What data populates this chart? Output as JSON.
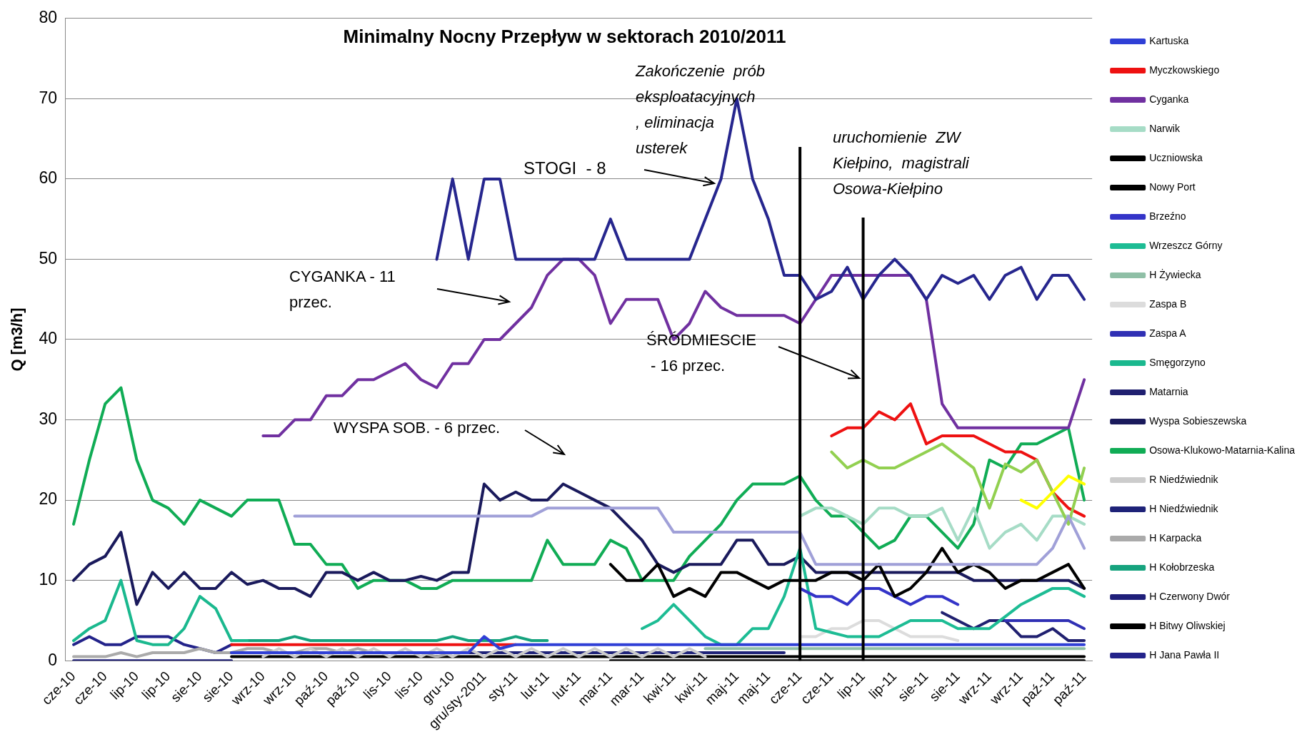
{
  "chart_data": {
    "type": "line",
    "title": "Minimalny Nocny Przepływ w sektorach 2010/2011",
    "ylabel": "Q [m3/h]",
    "categories": [
      "cze-10",
      null,
      "cze-10",
      null,
      "lip-10",
      null,
      "lip-10",
      null,
      "sie-10",
      null,
      "sie-10",
      null,
      "wrz-10",
      null,
      "wrz-10",
      null,
      "paź-10",
      null,
      "paź-10",
      null,
      "lis-10",
      null,
      "lis-10",
      null,
      "gru-10",
      null,
      "gru/sty-2011",
      null,
      "sty-11",
      null,
      "lut-11",
      null,
      "lut-11",
      null,
      "mar-11",
      null,
      "mar-11",
      null,
      "kwi-11",
      null,
      "kwi-11",
      null,
      "maj-11",
      null,
      "maj-11",
      null,
      "cze-11",
      null,
      "cze-11",
      null,
      "lip-11",
      null,
      "lip-11",
      null,
      "sie-11",
      null,
      "sie-11",
      null,
      "wrz-11",
      null,
      "wrz-11",
      null,
      "paź-11",
      null,
      "paź-11"
    ],
    "ylim": [
      0,
      80
    ],
    "yticks": [
      0,
      10,
      20,
      30,
      40,
      50,
      60,
      70,
      80
    ],
    "grid": "y",
    "legend": "right",
    "marker": "none",
    "line_style": "solid",
    "series": [
      {
        "name": "H Jana Pawła II",
        "color": "#23238a",
        "values": [
          2,
          3,
          2,
          2,
          3,
          3,
          3,
          2,
          1.5,
          1,
          2,
          null,
          null,
          null,
          null,
          null,
          null,
          null,
          null,
          null,
          null,
          null,
          null,
          null,
          null,
          null,
          null,
          null,
          null,
          null,
          null,
          null,
          null,
          null,
          null,
          null,
          null,
          null,
          null,
          null,
          null,
          null,
          null,
          null,
          null,
          null,
          null,
          null,
          null,
          null,
          null,
          null,
          null,
          null,
          null,
          null,
          null,
          null,
          null,
          null,
          null,
          null,
          null,
          null,
          null
        ]
      },
      {
        "name": "H Bitwy Oliwskiej",
        "color": "#000000",
        "values": [
          null,
          null,
          null,
          null,
          null,
          null,
          null,
          null,
          null,
          null,
          0.5,
          0.5,
          0.5,
          0.5,
          0.5,
          0.5,
          0.5,
          0.5,
          0.5,
          0.5,
          0.5,
          0.5,
          0.5,
          0.5,
          0.5,
          0.5,
          0.5,
          0.5,
          0.5,
          0.5,
          0.5,
          0.5,
          0.5,
          0.5,
          0.5,
          0.5,
          0.5,
          0.5,
          0.5,
          0.5,
          0.5,
          0.5,
          0.5,
          0.5,
          0.5,
          0.5,
          0.5,
          0.5,
          0.5,
          0.5,
          0.5,
          0.5,
          0.5,
          0.5,
          0.5,
          0.5,
          0.5,
          0.5,
          0.5,
          0.5,
          0.5,
          0.5,
          0.5,
          0.5,
          0.5
        ]
      },
      {
        "name": "H Czerwony Dwór",
        "color": "#1f1f7a",
        "values": [
          0,
          0,
          0,
          0,
          0,
          0,
          0,
          0,
          0,
          0,
          0,
          null,
          null,
          null,
          null,
          null,
          null,
          null,
          null,
          null,
          null,
          null,
          null,
          null,
          null,
          null,
          null,
          null,
          null,
          null,
          null,
          null,
          null,
          null,
          null,
          null,
          null,
          null,
          null,
          null,
          null,
          null,
          null,
          null,
          null,
          null,
          null,
          null,
          null,
          null,
          null,
          null,
          null,
          null,
          null,
          null,
          null,
          null,
          null,
          null,
          null,
          null,
          null,
          null,
          null
        ]
      },
      {
        "name": "H Kołobrzeska",
        "color": "#16a37e",
        "values": [
          null,
          null,
          null,
          null,
          null,
          null,
          null,
          null,
          null,
          null,
          2.5,
          2.5,
          2.5,
          2.5,
          3,
          2.5,
          2.5,
          2.5,
          2.5,
          2.5,
          2.5,
          2.5,
          2.5,
          2.5,
          3,
          2.5,
          2.5,
          2.5,
          3,
          2.5,
          2.5,
          null,
          null,
          null,
          null,
          null,
          null,
          null,
          null,
          null,
          null,
          null,
          null,
          null,
          null,
          null,
          null,
          null,
          null,
          null,
          null,
          null,
          null,
          null,
          null,
          null,
          null,
          null,
          null,
          null,
          null,
          null,
          null,
          null,
          null
        ]
      },
      {
        "name": "H Karpacka",
        "color": "#aaaaaa",
        "values": [
          0.5,
          0.5,
          0.5,
          1,
          0.5,
          1,
          1,
          1,
          1.5,
          1,
          1,
          1.5,
          1.5,
          1,
          1,
          1.5,
          1.5,
          1,
          1.5,
          1,
          1,
          1,
          1,
          0.5,
          1,
          1,
          1,
          1,
          1,
          1,
          1,
          null,
          null,
          null,
          null,
          null,
          null,
          null,
          null,
          null,
          null,
          null,
          null,
          null,
          null,
          null,
          null,
          null,
          null,
          null,
          null,
          null,
          null,
          null,
          null,
          null,
          null,
          null,
          null,
          null,
          null,
          null,
          null,
          null,
          null
        ]
      },
      {
        "name": "H Niedźwiednik",
        "color": "#1e2278",
        "values": [
          null,
          null,
          null,
          null,
          null,
          null,
          null,
          null,
          null,
          null,
          1,
          1,
          1,
          1,
          1,
          1,
          1,
          1,
          1,
          1,
          1,
          1,
          1,
          1,
          1,
          1,
          1,
          1,
          1,
          1,
          1,
          1,
          1,
          1,
          1,
          1,
          1,
          1,
          1,
          1,
          1,
          1,
          1,
          1,
          1,
          1,
          null,
          null,
          null,
          null,
          null,
          null,
          null,
          null,
          null,
          null,
          null,
          null,
          null,
          null,
          null,
          null,
          null,
          null,
          null
        ]
      },
      {
        "name": "R Niedźwiednik",
        "color": "#cccccc",
        "values": [
          null,
          null,
          null,
          null,
          null,
          null,
          null,
          null,
          null,
          null,
          null,
          null,
          0.5,
          1.5,
          0.5,
          1.5,
          0.5,
          1.5,
          0.5,
          1.5,
          0.5,
          1.5,
          0.5,
          1.5,
          0.5,
          1.5,
          0.5,
          1.5,
          0.5,
          1.5,
          0.5,
          1.5,
          0.5,
          1.5,
          0.5,
          1.5,
          0.5,
          1.5,
          0.5,
          1.5,
          0.5,
          null,
          null,
          null,
          null,
          null,
          null,
          null,
          null,
          null,
          null,
          null,
          null,
          null,
          null,
          null,
          null,
          null,
          null,
          null,
          null,
          null,
          null,
          null,
          null
        ]
      },
      {
        "name": "Osowa-Klukowo-Matarnia-Kalina",
        "color": "#10ac55",
        "values": [
          17,
          25,
          32,
          34,
          25,
          20,
          19,
          17,
          20,
          19,
          18,
          20,
          20,
          20,
          14.5,
          14.5,
          12,
          12,
          9,
          10,
          10,
          10,
          9,
          9,
          10,
          10,
          10,
          10,
          10,
          10,
          15,
          12,
          12,
          12,
          15,
          14,
          10,
          10,
          10,
          13,
          15,
          17,
          20,
          22,
          22,
          22,
          23,
          20,
          18,
          18,
          16,
          14,
          15,
          18,
          18,
          16,
          14,
          17,
          25,
          24,
          27,
          27,
          28,
          29,
          20
        ]
      },
      {
        "name": "Wyspa Sobieszewska",
        "color": "#1a1a5c",
        "values": [
          10,
          12,
          13,
          16,
          7,
          11,
          9,
          11,
          9,
          9,
          11,
          9.5,
          10,
          9,
          9,
          8,
          11,
          11,
          10,
          11,
          10,
          10,
          10.5,
          10,
          11,
          11,
          22,
          20,
          21,
          20,
          20,
          22,
          21,
          20,
          19,
          17,
          15,
          12,
          11,
          12,
          12,
          12,
          15,
          15,
          12,
          12,
          13,
          11,
          11,
          11,
          11,
          11,
          11,
          11,
          11,
          11,
          11,
          10,
          10,
          10,
          10,
          10,
          10,
          10,
          9
        ]
      },
      {
        "name": "Matarnia",
        "color": "#202070",
        "values": [
          null,
          null,
          null,
          null,
          null,
          null,
          null,
          null,
          null,
          null,
          null,
          null,
          null,
          null,
          null,
          null,
          null,
          null,
          null,
          null,
          null,
          null,
          null,
          null,
          null,
          null,
          null,
          null,
          null,
          null,
          null,
          null,
          null,
          null,
          null,
          null,
          null,
          null,
          null,
          null,
          null,
          null,
          null,
          null,
          null,
          null,
          null,
          null,
          null,
          null,
          null,
          null,
          null,
          null,
          null,
          6,
          5,
          4,
          5,
          5,
          3,
          3,
          4,
          2.5,
          2.5
        ]
      },
      {
        "name": "Smęgorzyno",
        "color": "#1ab88e",
        "values": [
          2.5,
          4,
          5,
          10,
          2.5,
          2,
          2,
          4,
          8,
          6.5,
          2.5,
          2.5,
          null,
          null,
          null,
          null,
          null,
          null,
          null,
          null,
          null,
          null,
          null,
          null,
          null,
          null,
          null,
          null,
          null,
          null,
          null,
          null,
          null,
          null,
          null,
          null,
          null,
          null,
          null,
          null,
          null,
          null,
          null,
          null,
          null,
          null,
          null,
          null,
          null,
          null,
          null,
          null,
          null,
          null,
          null,
          null,
          null,
          null,
          null,
          null,
          null,
          null,
          null,
          null,
          null
        ]
      },
      {
        "name": "Zaspa A",
        "color": "#3030b4",
        "values": [
          null,
          null,
          null,
          null,
          null,
          null,
          null,
          null,
          null,
          null,
          null,
          null,
          null,
          null,
          null,
          null,
          null,
          null,
          null,
          null,
          null,
          null,
          null,
          null,
          null,
          null,
          null,
          null,
          null,
          null,
          null,
          null,
          null,
          null,
          null,
          null,
          null,
          null,
          null,
          null,
          null,
          null,
          null,
          null,
          null,
          null,
          null,
          null,
          null,
          null,
          null,
          null,
          null,
          null,
          null,
          null,
          null,
          null,
          null,
          5,
          5,
          5,
          5,
          5,
          4
        ]
      },
      {
        "name": "Zaspa B",
        "color": "#dcdcdc",
        "values": [
          null,
          null,
          null,
          null,
          null,
          null,
          null,
          null,
          null,
          null,
          null,
          null,
          null,
          null,
          null,
          null,
          null,
          null,
          null,
          null,
          null,
          null,
          null,
          null,
          null,
          null,
          null,
          null,
          null,
          null,
          null,
          null,
          null,
          null,
          null,
          null,
          null,
          null,
          null,
          null,
          null,
          null,
          null,
          null,
          null,
          null,
          3,
          3,
          4,
          4,
          5,
          5,
          4,
          3,
          3,
          3,
          2.5,
          null,
          null,
          null,
          null,
          null,
          null,
          null,
          null
        ]
      },
      {
        "name": "H Żywiecka",
        "color": "#8fbfa6",
        "values": [
          null,
          null,
          null,
          null,
          null,
          null,
          null,
          null,
          null,
          null,
          null,
          null,
          null,
          null,
          null,
          null,
          null,
          null,
          null,
          null,
          null,
          null,
          null,
          null,
          null,
          null,
          null,
          null,
          null,
          null,
          null,
          null,
          null,
          null,
          null,
          null,
          null,
          null,
          null,
          null,
          1.5,
          1.5,
          1.5,
          1.5,
          1.5,
          1.5,
          1.5,
          1.5,
          1.5,
          1.5,
          1.5,
          1.5,
          1.5,
          1.5,
          1.5,
          1.5,
          1.5,
          1.5,
          1.5,
          1.5,
          1.5,
          1.5,
          1.5,
          1.5,
          1.5
        ]
      },
      {
        "name": "Wrzeszcz Górny",
        "color": "#1dbc94",
        "values": [
          null,
          null,
          null,
          null,
          null,
          null,
          null,
          null,
          null,
          null,
          null,
          null,
          null,
          null,
          null,
          null,
          null,
          null,
          null,
          null,
          null,
          null,
          null,
          null,
          null,
          null,
          null,
          null,
          null,
          null,
          null,
          null,
          null,
          null,
          null,
          null,
          4,
          5,
          7,
          5,
          3,
          2,
          2,
          4,
          4,
          8,
          14,
          4,
          3.5,
          3,
          3,
          3,
          4,
          5,
          5,
          5,
          4,
          4,
          4,
          5.5,
          7,
          8,
          9,
          9,
          8
        ]
      },
      {
        "name": "Brzeźno",
        "color": "#3434c8",
        "values": [
          null,
          null,
          null,
          null,
          null,
          null,
          null,
          null,
          null,
          null,
          null,
          null,
          null,
          null,
          null,
          null,
          null,
          null,
          null,
          null,
          null,
          null,
          null,
          null,
          null,
          null,
          null,
          null,
          null,
          null,
          null,
          null,
          null,
          null,
          null,
          null,
          null,
          null,
          null,
          null,
          null,
          null,
          null,
          null,
          null,
          null,
          9,
          8,
          8,
          7,
          9,
          9,
          8,
          7,
          8,
          8,
          7,
          null,
          null,
          null,
          null,
          null,
          null,
          null,
          null
        ]
      },
      {
        "name": "Nowy Port",
        "color": "#000000",
        "values": [
          null,
          null,
          null,
          null,
          null,
          null,
          null,
          null,
          null,
          null,
          null,
          null,
          null,
          null,
          null,
          null,
          null,
          null,
          null,
          null,
          null,
          null,
          null,
          null,
          null,
          null,
          null,
          null,
          null,
          null,
          null,
          null,
          null,
          null,
          12,
          10,
          10,
          12,
          8,
          9,
          8,
          11,
          11,
          10,
          9,
          10,
          10,
          10,
          11,
          11,
          10,
          12,
          8,
          9,
          11,
          14,
          11,
          12,
          11,
          9,
          10,
          10,
          11,
          12,
          9
        ]
      },
      {
        "name": "Uczniowska",
        "color": "#000000",
        "values": [
          null,
          null,
          null,
          null,
          null,
          null,
          null,
          null,
          null,
          null,
          null,
          null,
          null,
          null,
          null,
          null,
          null,
          null,
          null,
          null,
          null,
          null,
          null,
          null,
          null,
          null,
          null,
          null,
          null,
          null,
          null,
          null,
          null,
          null,
          0,
          0,
          0,
          0,
          0,
          0,
          0,
          0,
          0,
          0,
          0,
          0,
          0,
          0,
          0,
          0,
          0,
          0,
          0,
          0,
          0,
          0,
          0,
          0,
          0,
          0,
          0,
          0,
          0,
          0,
          0
        ]
      },
      {
        "name": "Narwik",
        "color": "#a6dcc6",
        "values": [
          null,
          null,
          null,
          null,
          null,
          null,
          null,
          null,
          null,
          null,
          null,
          null,
          null,
          null,
          null,
          null,
          null,
          null,
          null,
          null,
          null,
          null,
          null,
          null,
          null,
          null,
          null,
          null,
          null,
          null,
          null,
          null,
          null,
          null,
          null,
          null,
          null,
          null,
          null,
          null,
          null,
          null,
          null,
          null,
          null,
          null,
          18,
          19,
          19,
          18,
          17,
          19,
          19,
          18,
          18,
          19,
          15,
          19,
          14,
          16,
          17,
          15,
          18,
          18,
          17
        ]
      },
      {
        "name": "Cyganka",
        "color": "#7030a0",
        "values": [
          null,
          null,
          null,
          null,
          null,
          null,
          null,
          null,
          null,
          null,
          null,
          null,
          28,
          28,
          30,
          30,
          33,
          33,
          35,
          35,
          36,
          37,
          35,
          34,
          37,
          37,
          40,
          40,
          42,
          44,
          48,
          50,
          50,
          48,
          42,
          45,
          45,
          45,
          40,
          42,
          46,
          44,
          43,
          43,
          43,
          43,
          42,
          45,
          48,
          48,
          48,
          48,
          48,
          48,
          45,
          32,
          29,
          29,
          29,
          29,
          29,
          29,
          29,
          29,
          35
        ]
      },
      {
        "name": "Myczkowskiego",
        "color": "#ee1111",
        "values": [
          null,
          null,
          null,
          null,
          null,
          null,
          null,
          null,
          null,
          null,
          2,
          2,
          2,
          2,
          2,
          2,
          2,
          2,
          2,
          2,
          2,
          2,
          2,
          2,
          2,
          2,
          2,
          2,
          2,
          null,
          null,
          null,
          null,
          null,
          null,
          null,
          null,
          null,
          null,
          null,
          null,
          null,
          null,
          null,
          null,
          null,
          null,
          null,
          28,
          29,
          29,
          31,
          30,
          32,
          27,
          28,
          28,
          28,
          27,
          26,
          26,
          25,
          21,
          19,
          18
        ]
      },
      {
        "name": "Kartuska",
        "color": "#2f3fd6",
        "values": [
          null,
          null,
          null,
          null,
          null,
          null,
          null,
          null,
          null,
          null,
          1,
          1,
          1,
          1,
          1,
          1,
          1,
          1,
          1,
          1,
          1,
          1,
          1,
          1,
          1,
          1,
          3,
          1.5,
          2,
          2,
          2,
          2,
          2,
          2,
          2,
          2,
          2,
          2,
          2,
          2,
          2,
          2,
          2,
          2,
          2,
          2,
          2,
          2,
          2,
          2,
          2,
          2,
          2,
          2,
          2,
          2,
          2,
          2,
          2,
          2,
          2,
          2,
          2,
          2,
          2
        ]
      },
      {
        "color": "#26268e",
        "values": [
          null,
          null,
          null,
          null,
          null,
          null,
          null,
          null,
          null,
          null,
          null,
          null,
          null,
          null,
          null,
          null,
          null,
          null,
          null,
          null,
          null,
          null,
          null,
          50,
          60,
          50,
          60,
          60,
          50,
          50,
          50,
          50,
          50,
          50,
          55,
          50,
          50,
          50,
          50,
          50,
          55,
          60,
          70,
          60,
          55,
          48,
          48,
          45,
          46,
          49,
          45,
          48,
          50,
          48,
          45,
          48,
          47,
          48,
          45,
          48,
          49,
          45,
          48,
          48,
          45
        ]
      },
      {
        "color": "#92d050",
        "values": [
          null,
          null,
          null,
          null,
          null,
          null,
          null,
          null,
          null,
          null,
          null,
          null,
          null,
          null,
          null,
          null,
          null,
          null,
          null,
          null,
          null,
          null,
          null,
          null,
          null,
          null,
          null,
          null,
          null,
          null,
          null,
          null,
          null,
          null,
          null,
          null,
          null,
          null,
          null,
          null,
          null,
          null,
          null,
          null,
          null,
          null,
          null,
          null,
          26,
          24,
          25,
          24,
          24,
          25,
          26,
          27,
          25.5,
          24,
          19,
          24.5,
          23.5,
          25,
          21,
          17,
          24
        ]
      },
      {
        "color": "#ffff00",
        "values": [
          null,
          null,
          null,
          null,
          null,
          null,
          null,
          null,
          null,
          null,
          null,
          null,
          null,
          null,
          null,
          null,
          null,
          null,
          null,
          null,
          null,
          null,
          null,
          null,
          null,
          null,
          null,
          null,
          null,
          null,
          null,
          null,
          null,
          null,
          null,
          null,
          null,
          null,
          null,
          null,
          null,
          null,
          null,
          null,
          null,
          null,
          null,
          null,
          null,
          null,
          null,
          null,
          null,
          null,
          null,
          null,
          null,
          null,
          null,
          null,
          20,
          19,
          21,
          23,
          22
        ]
      },
      {
        "color": "#a0a0d8",
        "values": [
          null,
          null,
          null,
          null,
          null,
          null,
          null,
          null,
          null,
          null,
          null,
          null,
          null,
          null,
          18,
          18,
          18,
          18,
          18,
          18,
          18,
          18,
          18,
          18,
          18,
          18,
          18,
          18,
          18,
          18,
          19,
          19,
          19,
          19,
          19,
          19,
          19,
          19,
          16,
          16,
          16,
          16,
          16,
          16,
          16,
          16,
          16,
          12,
          12,
          12,
          12,
          12,
          12,
          12,
          12,
          12,
          12,
          12,
          12,
          12,
          12,
          12,
          14,
          18,
          14
        ]
      }
    ],
    "ref_lines": [
      {
        "axis": "x",
        "value": "cze-11",
        "color": "#000000"
      },
      {
        "axis": "x",
        "value": "lip-11",
        "color": "#000000"
      }
    ],
    "annotations": [
      "STOGI  - 8",
      "Zakończenie  prób\neksploatacyjnych\n, eliminacja\nusterek",
      "uruchomienie  ZW\nKiełpino,  magistrali\nOsowa-Kiełpino",
      "CYGANKA - 11\nprzec.",
      "ŚRÓDMIESCIE\n - 16 przec.",
      "WYSPA SOB. - 6 przec."
    ]
  }
}
